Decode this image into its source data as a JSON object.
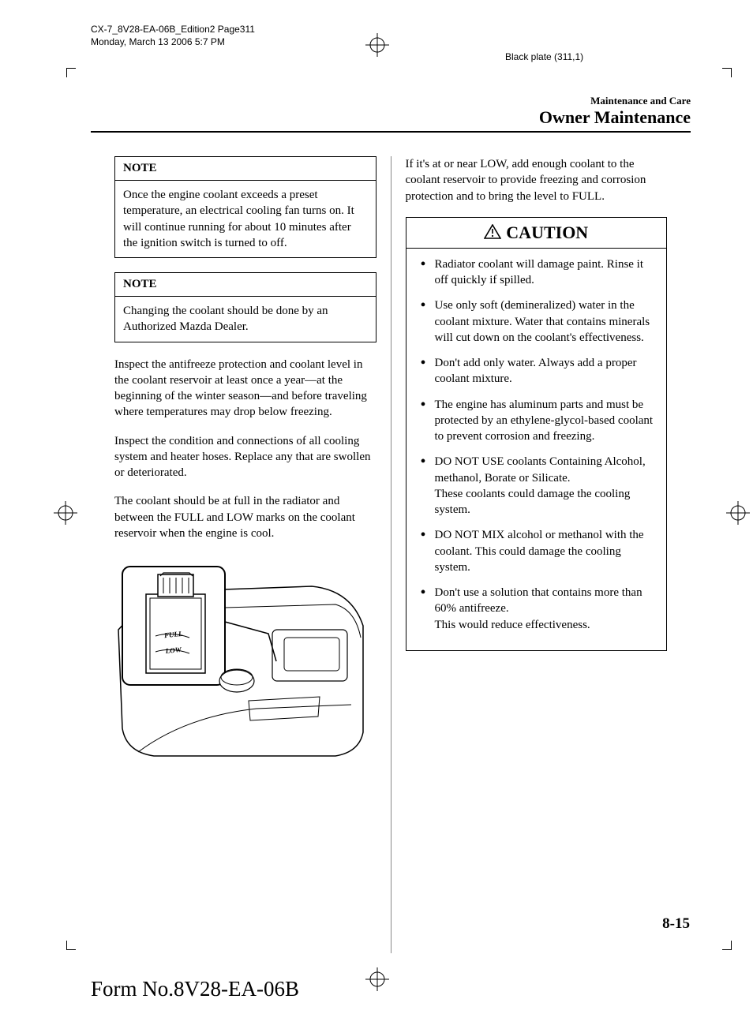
{
  "meta": {
    "line1": "CX-7_8V28-EA-06B_Edition2 Page311",
    "line2": "Monday, March 13 2006 5:7 PM",
    "plate": "Black plate (311,1)"
  },
  "header": {
    "small": "Maintenance and Care",
    "large": "Owner Maintenance"
  },
  "left": {
    "note1": {
      "title": "NOTE",
      "body": "Once the engine coolant exceeds a preset temperature, an electrical cooling fan turns on. It will continue running for about 10 minutes after the ignition switch is turned to off."
    },
    "note2": {
      "title": "NOTE",
      "body": "Changing the coolant should be done by an Authorized Mazda Dealer."
    },
    "para1": "Inspect the antifreeze protection and coolant level in the coolant reservoir at least once a year―at the beginning of the winter season―and before traveling where temperatures may drop below freezing.",
    "para2": "Inspect the condition and connections of all cooling system and heater hoses. Replace any that are swollen or deteriorated.",
    "para3": "The coolant should be at full in the radiator and between the FULL and LOW marks on the coolant reservoir when the engine is cool.",
    "figure_labels": {
      "full": "FULL",
      "low": "LOW"
    }
  },
  "right": {
    "para1": "If it's at or near LOW, add enough coolant to the coolant reservoir to provide freezing and corrosion protection and to bring the level to FULL.",
    "caution": {
      "title": "CAUTION",
      "items": [
        "Radiator coolant will damage paint. Rinse it off quickly if spilled.",
        "Use only soft (demineralized) water in the coolant mixture. Water that contains minerals will cut down on the coolant's effectiveness.",
        "Don't add only water. Always add a proper coolant mixture.",
        "The engine has aluminum parts and must be protected by an ethylene-glycol-based coolant to prevent corrosion and freezing.",
        "DO NOT USE coolants Containing Alcohol, methanol, Borate or Silicate.\nThese coolants could damage the cooling system.",
        "DO NOT MIX alcohol or methanol with the coolant. This could damage the cooling system.",
        "Don't use a solution that contains more than 60% antifreeze.\nThis would reduce effectiveness."
      ]
    }
  },
  "page_num": "8-15",
  "form_no": "Form No.8V28-EA-06B"
}
